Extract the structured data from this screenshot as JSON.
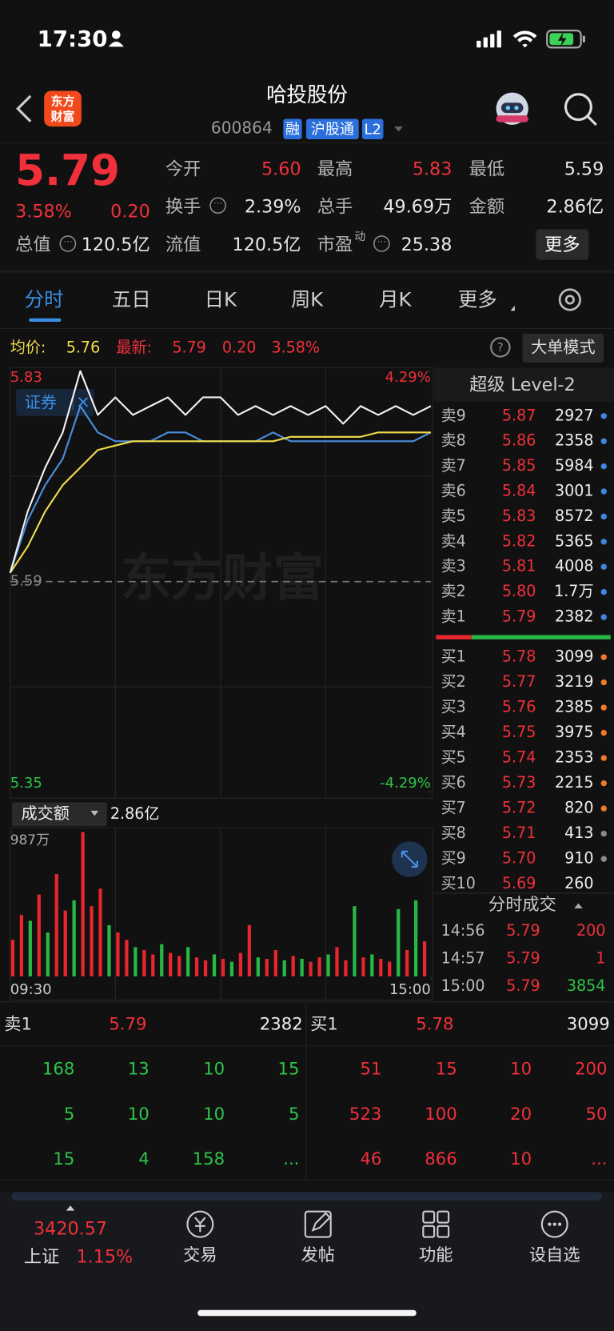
{
  "status": {
    "time": "17:30"
  },
  "header": {
    "logo": [
      "东方",
      "财富"
    ],
    "title": "哈投股份",
    "code": "600864",
    "badges": [
      "融",
      "沪股通",
      "L2"
    ]
  },
  "quote": {
    "price": "5.79",
    "pct": "3.58%",
    "change": "0.20",
    "more": "更多",
    "fields": [
      {
        "label": "今开",
        "value": "5.60",
        "color": "#f0303a"
      },
      {
        "label": "最高",
        "value": "5.83",
        "color": "#f0303a"
      },
      {
        "label": "最低",
        "value": "5.59",
        "color": "#e8e8e8"
      },
      {
        "label": "换手",
        "value": "2.39%",
        "color": "#e8e8e8",
        "info": true
      },
      {
        "label": "总手",
        "value": "49.69万",
        "color": "#e8e8e8"
      },
      {
        "label": "金额",
        "value": "2.86亿",
        "color": "#e8e8e8"
      },
      {
        "label": "总值",
        "value": "120.5亿",
        "color": "#e8e8e8",
        "info": true
      },
      {
        "label": "流值",
        "value": "120.5亿",
        "color": "#e8e8e8"
      },
      {
        "label": "市盈",
        "sup": "动",
        "value": "25.38",
        "color": "#e8e8e8",
        "info": true
      }
    ]
  },
  "tabs": {
    "items": [
      "分时",
      "五日",
      "日K",
      "周K",
      "月K",
      "更多"
    ],
    "active": 0
  },
  "chart_info": {
    "avg_label": "均价:",
    "avg": "5.76",
    "latest_label": "最新:",
    "latest": "5.79",
    "change": "0.20",
    "pct": "3.58%",
    "help": "?",
    "mode": "大单模式",
    "watermark": "东方财富",
    "tag_close": "×"
  },
  "chart_data": [
    {
      "type": "line",
      "xlim": [
        0,
        240
      ],
      "ylim": [
        5.35,
        5.83
      ],
      "yticks": [
        5.35,
        5.59,
        5.83
      ],
      "reference": 5.59,
      "y2lim": [
        -4.29,
        4.29
      ],
      "y2ticks": [
        {
          "value": -4.29,
          "label": "-4.29%"
        },
        {
          "value": 4.29,
          "label": "4.29%"
        }
      ],
      "x": [
        0,
        10,
        20,
        30,
        40,
        50,
        60,
        70,
        80,
        90,
        100,
        110,
        120,
        130,
        140,
        150,
        160,
        170,
        180,
        190,
        200,
        210,
        220,
        230,
        240
      ],
      "series": [
        {
          "color": "#f2f2f2",
          "values": [
            5.6,
            5.67,
            5.72,
            5.76,
            5.83,
            5.78,
            5.8,
            5.78,
            5.79,
            5.8,
            5.78,
            5.8,
            5.8,
            5.78,
            5.79,
            5.78,
            5.79,
            5.78,
            5.79,
            5.77,
            5.79,
            5.78,
            5.79,
            5.78,
            5.79
          ]
        },
        {
          "color": "#f2dc4b",
          "values": [
            5.6,
            5.63,
            5.67,
            5.7,
            5.72,
            5.74,
            5.745,
            5.75,
            5.75,
            5.75,
            5.75,
            5.75,
            5.75,
            5.75,
            5.75,
            5.75,
            5.755,
            5.755,
            5.755,
            5.755,
            5.755,
            5.76,
            5.76,
            5.76,
            5.76
          ]
        },
        {
          "name": "证券",
          "color": "#4a8fe0",
          "values": [
            5.6,
            5.66,
            5.7,
            5.73,
            5.79,
            5.76,
            5.75,
            5.75,
            5.75,
            5.76,
            5.76,
            5.75,
            5.75,
            5.75,
            5.75,
            5.76,
            5.75,
            5.75,
            5.75,
            5.75,
            5.75,
            5.75,
            5.75,
            5.75,
            5.76
          ]
        }
      ]
    },
    {
      "type": "bar",
      "title": "成交额",
      "total": "2.86亿",
      "xlim": [
        0,
        240
      ],
      "ylim": [
        0,
        987
      ],
      "yticks": [
        {
          "value": 987,
          "label": "987万"
        }
      ],
      "xticks": [
        {
          "value": 0,
          "label": "09:30"
        },
        {
          "value": 240,
          "label": "15:00"
        }
      ],
      "x": [
        0,
        5,
        10,
        15,
        20,
        25,
        30,
        35,
        40,
        45,
        50,
        55,
        60,
        65,
        70,
        75,
        80,
        85,
        90,
        95,
        100,
        105,
        110,
        115,
        120,
        125,
        130,
        135,
        140,
        145,
        150,
        155,
        160,
        165,
        170,
        175,
        180,
        185,
        190,
        195,
        200,
        205,
        210,
        215,
        220,
        225,
        230,
        235
      ],
      "values": [
        250,
        420,
        380,
        560,
        300,
        700,
        450,
        520,
        987,
        480,
        600,
        350,
        300,
        250,
        200,
        180,
        150,
        220,
        160,
        140,
        200,
        130,
        110,
        150,
        120,
        100,
        160,
        350,
        130,
        120,
        180,
        110,
        140,
        120,
        100,
        130,
        150,
        200,
        110,
        480,
        130,
        150,
        120,
        100,
        460,
        180,
        520,
        240
      ],
      "colors": [
        "#e8262d",
        "#e8262d",
        "#27b845",
        "#e8262d",
        "#27b845",
        "#e8262d",
        "#e8262d",
        "#27b845",
        "#e8262d",
        "#e8262d",
        "#e8262d",
        "#27b845",
        "#e8262d",
        "#e8262d",
        "#27b845",
        "#e8262d",
        "#e8262d",
        "#27b845",
        "#e8262d",
        "#e8262d",
        "#27b845",
        "#e8262d",
        "#e8262d",
        "#27b845",
        "#e8262d",
        "#27b845",
        "#e8262d",
        "#e8262d",
        "#27b845",
        "#e8262d",
        "#e8262d",
        "#27b845",
        "#e8262d",
        "#27b845",
        "#e8262d",
        "#e8262d",
        "#27b845",
        "#e8262d",
        "#e8262d",
        "#27b845",
        "#e8262d",
        "#27b845",
        "#e8262d",
        "#e8262d",
        "#27b845",
        "#e8262d",
        "#27b845",
        "#e8262d"
      ]
    }
  ],
  "orderbook": {
    "title": "超级 Level-2",
    "sells": [
      {
        "label": "卖9",
        "price": "5.87",
        "volume": "2927",
        "dot": "#3d86e0"
      },
      {
        "label": "卖8",
        "price": "5.86",
        "volume": "2358",
        "dot": "#3d86e0"
      },
      {
        "label": "卖7",
        "price": "5.85",
        "volume": "5984",
        "dot": "#3d86e0"
      },
      {
        "label": "卖6",
        "price": "5.84",
        "volume": "3001",
        "dot": "#3d86e0"
      },
      {
        "label": "卖5",
        "price": "5.83",
        "volume": "8572",
        "dot": "#3d86e0"
      },
      {
        "label": "卖4",
        "price": "5.82",
        "volume": "5365",
        "dot": "#3d86e0"
      },
      {
        "label": "卖3",
        "price": "5.81",
        "volume": "4008",
        "dot": "#3d86e0"
      },
      {
        "label": "卖2",
        "price": "5.80",
        "volume": "1.7万",
        "dot": "#3d86e0"
      },
      {
        "label": "卖1",
        "price": "5.79",
        "volume": "2382",
        "dot": "#3d86e0"
      }
    ],
    "buys": [
      {
        "label": "买1",
        "price": "5.78",
        "volume": "3099",
        "dot": "#f07a2a"
      },
      {
        "label": "买2",
        "price": "5.77",
        "volume": "3219",
        "dot": "#f07a2a"
      },
      {
        "label": "买3",
        "price": "5.76",
        "volume": "2385",
        "dot": "#f07a2a"
      },
      {
        "label": "买4",
        "price": "5.75",
        "volume": "3975",
        "dot": "#f07a2a"
      },
      {
        "label": "买5",
        "price": "5.74",
        "volume": "2353",
        "dot": "#f07a2a"
      },
      {
        "label": "买6",
        "price": "5.73",
        "volume": "2215",
        "dot": "#f07a2a"
      },
      {
        "label": "买7",
        "price": "5.72",
        "volume": "820",
        "dot": "#f07a2a"
      },
      {
        "label": "买8",
        "price": "5.71",
        "volume": "413",
        "dot": "#8a8a8a"
      },
      {
        "label": "买9",
        "price": "5.70",
        "volume": "910",
        "dot": "#8a8a8a"
      },
      {
        "label": "买10",
        "price": "5.69",
        "volume": "260"
      }
    ]
  },
  "trades": {
    "title": "分时成交",
    "rows": [
      {
        "time": "14:56",
        "price": "5.79",
        "volume": "200"
      },
      {
        "time": "14:57",
        "price": "5.79",
        "volume": "1"
      },
      {
        "time": "15:00",
        "price": "5.79",
        "volume": "3854"
      }
    ]
  },
  "queue": {
    "sell": {
      "label": "卖1",
      "price": "5.79",
      "volume": "2382",
      "rows": [
        [
          "168",
          "13",
          "10",
          "15"
        ],
        [
          "5",
          "10",
          "10",
          "5"
        ],
        [
          "15",
          "4",
          "158",
          "..."
        ]
      ]
    },
    "buy": {
      "label": "买1",
      "price": "5.78",
      "volume": "3099",
      "rows": [
        [
          "51",
          "15",
          "10",
          "200"
        ],
        [
          "523",
          "100",
          "20",
          "50"
        ],
        [
          "46",
          "866",
          "10",
          "..."
        ]
      ]
    }
  },
  "nav": {
    "index_value": "3420.57",
    "index_name": "上证",
    "index_pct": "1.15%",
    "items": [
      "交易",
      "发帖",
      "功能",
      "设自选"
    ]
  }
}
